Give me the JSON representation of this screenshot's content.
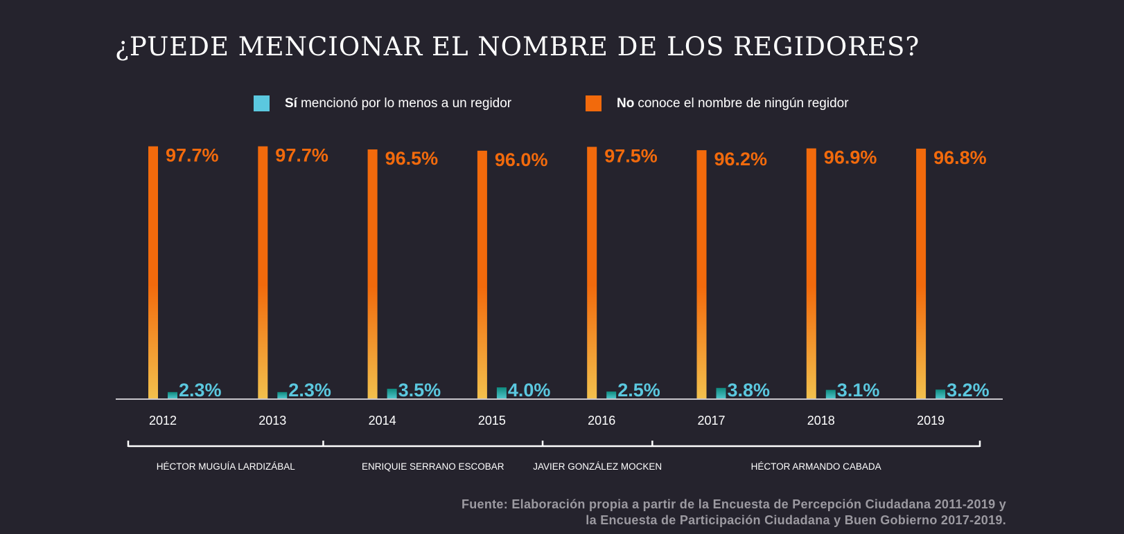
{
  "title": "¿PUEDE MENCIONAR EL NOMBRE DE LOS REGIDORES?",
  "legend": [
    {
      "key": "si",
      "strong": "Sí",
      "text": "mencionó por lo menos a un regidor",
      "color": "#5bc8df"
    },
    {
      "key": "no",
      "strong": "No",
      "text": "conoce el nombre de ningún regidor",
      "color": "#f26a0c"
    }
  ],
  "colors": {
    "no_top": "#f26a0c",
    "no_bottom": "#f2c04d",
    "si_top": "#0e8a7e",
    "si_bottom": "#4ec3c8",
    "si_label": "#5bc8df",
    "no_label": "#f26a0c",
    "axis": "#c9c7cc"
  },
  "chart_data": {
    "type": "bar",
    "title": "¿PUEDE MENCIONAR EL NOMBRE DE LOS REGIDORES?",
    "categories": [
      "2012",
      "2013",
      "2014",
      "2015",
      "2016",
      "2017",
      "2018",
      "2019"
    ],
    "series": [
      {
        "name": "Sí mencionó por lo menos a un regidor",
        "values": [
          2.3,
          2.3,
          3.5,
          4.0,
          2.5,
          3.8,
          3.1,
          3.2
        ],
        "labels": [
          "2.3%",
          "2.3%",
          "3.5%",
          "4.0%",
          "2.5%",
          "3.8%",
          "3.1%",
          "3.2%"
        ]
      },
      {
        "name": "No conoce el nombre de ningún regidor",
        "values": [
          97.7,
          97.7,
          96.5,
          96.0,
          97.5,
          96.2,
          96.9,
          96.8
        ],
        "labels": [
          "97.7%",
          "97.7%",
          "96.5%",
          "96.0%",
          "97.5%",
          "96.2%",
          "96.9%",
          "96.8%"
        ]
      }
    ],
    "xlabel": "",
    "ylabel": "",
    "ylim": [
      0,
      100
    ],
    "grid": false,
    "legend": "top-center",
    "periods": [
      {
        "name": "HÉCTOR MUGUÍA LARDIZÁBAL",
        "from": "2012",
        "to": "2013"
      },
      {
        "name": "ENRIQUIE SERRANO ESCOBAR",
        "from": "2014",
        "to": "2015"
      },
      {
        "name": "JAVIER GONZÁLEZ MOCKEN",
        "from": "2016",
        "to": "2016"
      },
      {
        "name": "HÉCTOR ARMANDO CABADA",
        "from": "2017",
        "to": "2019"
      }
    ]
  },
  "source": {
    "line1": "Fuente: Elaboración propia a partir de la Encuesta de Percepción Ciudadana 2011-2019 y",
    "line2": "la Encuesta de Participación Ciudadana y Buen Gobierno 2017-2019."
  }
}
